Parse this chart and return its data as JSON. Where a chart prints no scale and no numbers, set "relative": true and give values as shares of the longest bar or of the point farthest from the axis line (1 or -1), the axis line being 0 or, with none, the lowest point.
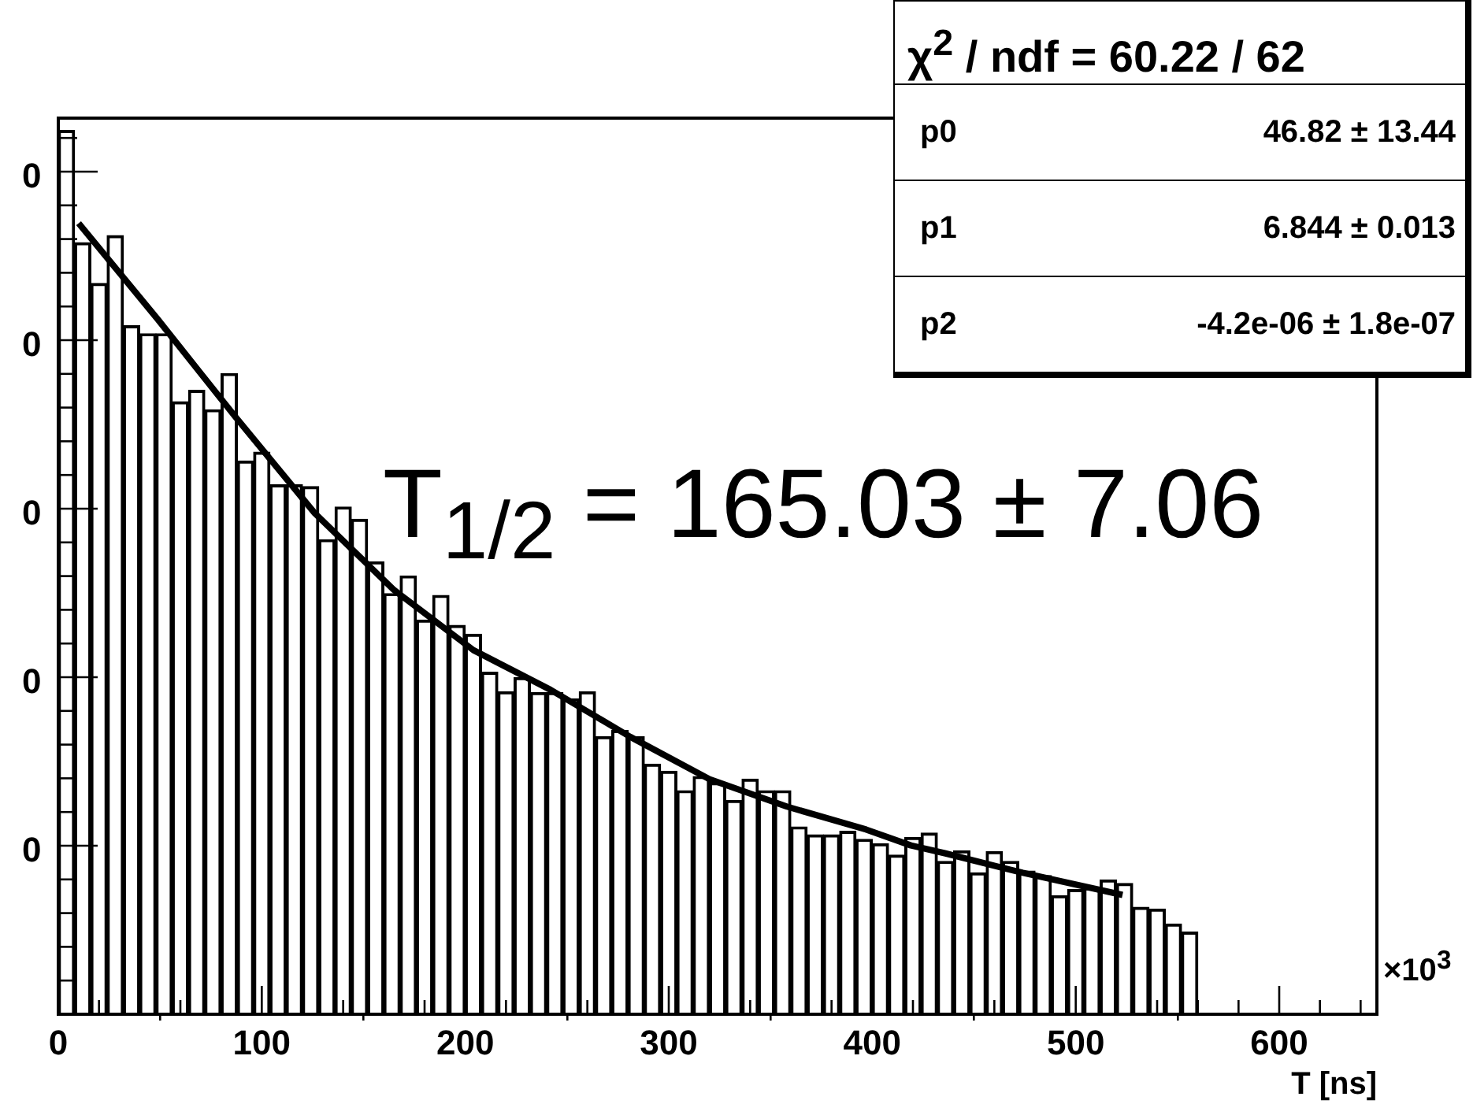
{
  "chart_data": {
    "type": "bar",
    "xlabel": "T [ns]",
    "relative": true,
    "grid": false,
    "legend": false,
    "xlim": [
      0,
      648
    ],
    "xticks": [
      0,
      100,
      200,
      300,
      400,
      500,
      600
    ],
    "color": "#000000",
    "x": [
      4,
      12,
      20,
      28,
      36,
      44,
      52,
      60,
      68,
      76,
      84,
      92,
      100,
      108,
      116,
      124,
      132,
      140,
      148,
      156,
      164,
      172,
      180,
      188,
      196,
      204,
      212,
      220,
      228,
      236,
      244,
      252,
      260,
      268,
      276,
      284,
      292,
      300,
      308,
      316,
      324,
      332,
      340,
      348,
      356,
      364,
      372,
      380,
      388,
      396,
      404,
      412,
      420,
      428,
      436,
      444,
      452,
      460,
      468,
      476,
      484,
      492,
      500,
      508,
      516,
      524,
      532,
      540,
      548,
      556
    ],
    "values": [
      1,
      0.873,
      0.827,
      0.881,
      0.779,
      0.77,
      0.77,
      0.693,
      0.706,
      0.684,
      0.725,
      0.626,
      0.636,
      0.599,
      0.599,
      0.597,
      0.537,
      0.574,
      0.56,
      0.512,
      0.476,
      0.496,
      0.446,
      0.474,
      0.44,
      0.43,
      0.387,
      0.365,
      0.381,
      0.364,
      0.364,
      0.357,
      0.365,
      0.314,
      0.321,
      0.314,
      0.283,
      0.275,
      0.253,
      0.269,
      0.262,
      0.242,
      0.266,
      0.253,
      0.253,
      0.212,
      0.203,
      0.203,
      0.207,
      0.198,
      0.193,
      0.18,
      0.2,
      0.205,
      0.173,
      0.185,
      0.16,
      0.184,
      0.173,
      0.162,
      0.157,
      0.134,
      0.141,
      0.143,
      0.152,
      0.148,
      0.121,
      0.119,
      0.102,
      0.093
    ],
    "series": [
      {
        "type": "line",
        "color": "#000000",
        "marker": "none",
        "x": [
          10,
          49,
          87,
          126,
          165,
          204,
          242,
          281,
          320,
          358,
          397,
          419,
          436,
          474,
          523
        ],
        "values": [
          0.895,
          0.786,
          0.676,
          0.567,
          0.48,
          0.412,
          0.367,
          0.314,
          0.266,
          0.235,
          0.209,
          0.191,
          0.182,
          0.16,
          0.135
        ]
      }
    ],
    "annotations": [
      "T$_{1/2}$ = 165.03 ± 7.06",
      "×10$^{3}$",
      "χ$^{2}$ / ndf = 60.22 / 62",
      "p0",
      "46.82 ± 13.44",
      "p1",
      "6.844 ± 0.013",
      "p2",
      "-4.2e-06 ± 1.8e-07",
      "0",
      "0",
      "0",
      "0",
      "0"
    ]
  }
}
